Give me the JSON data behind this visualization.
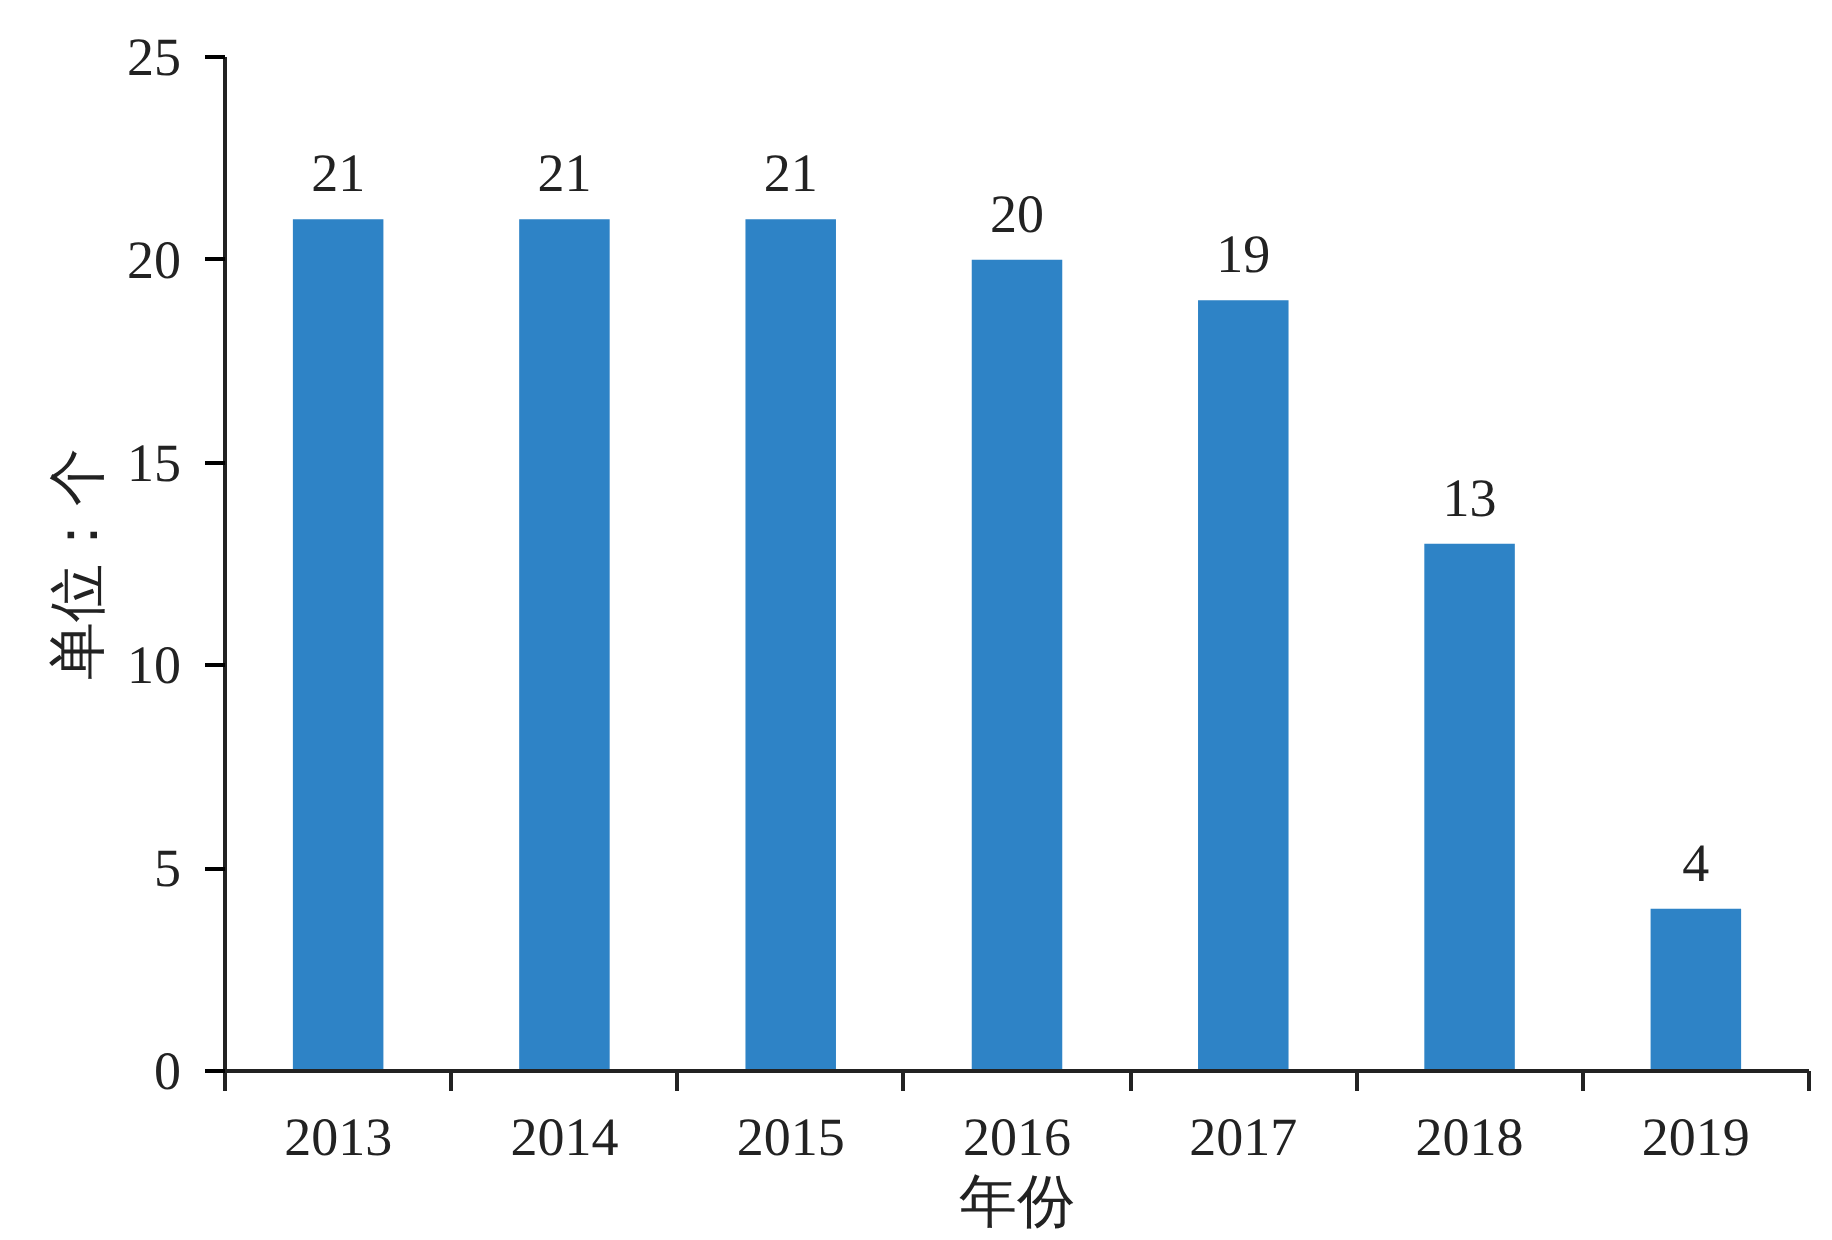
{
  "chart_data": {
    "type": "bar",
    "xlabel": "年份",
    "ylabel": "单位：个",
    "categories": [
      "2013",
      "2014",
      "2015",
      "2016",
      "2017",
      "2018",
      "2019"
    ],
    "values": [
      21,
      21,
      21,
      20,
      19,
      13,
      4
    ],
    "color": "#2e83c6",
    "ylim": [
      0,
      25
    ],
    "yticks": [
      0,
      5,
      10,
      15,
      20,
      25
    ],
    "grid": false,
    "data_labels": true
  }
}
